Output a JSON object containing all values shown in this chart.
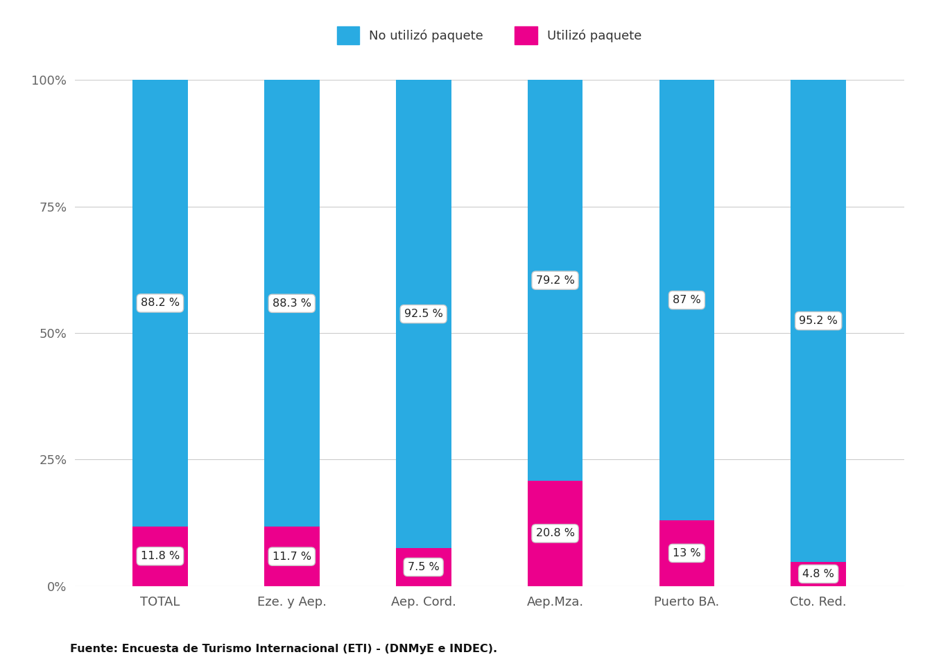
{
  "categories": [
    "TOTAL",
    "Eze. y Aep.",
    "Aep. Cord.",
    "Aep.Mza.",
    "Puerto BA.",
    "Cto. Red."
  ],
  "no_utilizo": [
    88.2,
    88.3,
    92.5,
    79.2,
    87.0,
    95.2
  ],
  "utilizo": [
    11.8,
    11.7,
    7.5,
    20.8,
    13.0,
    4.8
  ],
  "no_utilizo_labels": [
    "88.2 %",
    "88.3 %",
    "92.5 %",
    "79.2 %",
    "87 %",
    "95.2 %"
  ],
  "utilizo_labels": [
    "11.8 %",
    "11.7 %",
    "7.5 %",
    "20.8 %",
    "13 %",
    "4.8 %"
  ],
  "color_no_utilizo": "#29ABE2",
  "color_utilizo": "#EC008C",
  "legend_no_utilizo": "No utilizó paquete",
  "legend_utilizo": "Utilizó paquete",
  "ylabel_ticks": [
    "0%",
    "25%",
    "50%",
    "75%",
    "100%"
  ],
  "ylabel_values": [
    0,
    25,
    50,
    75,
    100
  ],
  "source_text": "Fuente: Encuesta de Turismo Internacional (ETI) - (DNMyE e INDEC).",
  "background_color": "#ffffff",
  "bar_width": 0.42,
  "figsize": [
    13.44,
    9.6
  ],
  "dpi": 100
}
